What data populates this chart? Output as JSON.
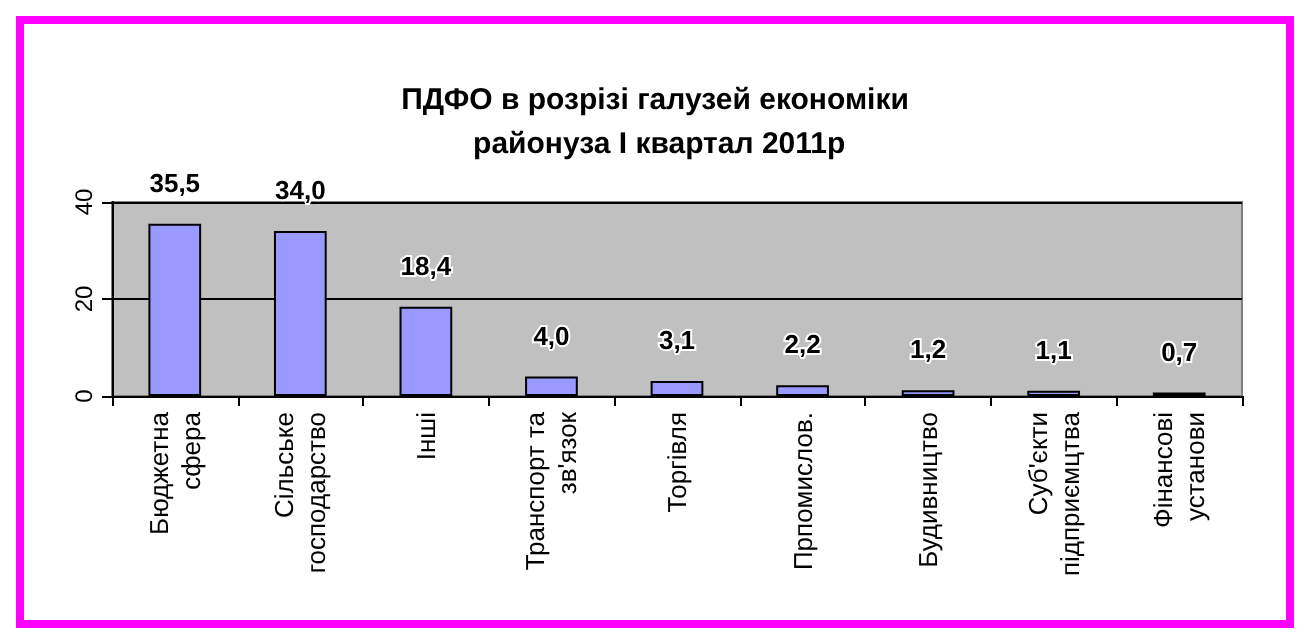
{
  "chart_data": {
    "type": "bar",
    "title": "ПДФО в розрізі галузей економіки районуза І квартал 2011р",
    "categories": [
      "Бюджетна сфера",
      "Сільське господарство",
      "Інші",
      "Транспорт та зв'язок",
      "Торгівля",
      "Прпомислов.",
      "Будивництво",
      "Суб'єкти підприємцтва",
      "Фінансові установи"
    ],
    "values": [
      35.5,
      34.0,
      18.4,
      4.0,
      3.1,
      2.2,
      1.2,
      1.1,
      0.7
    ],
    "value_labels": [
      "35,5",
      "34,0",
      "18,4",
      "4,0",
      "3,1",
      "2,2",
      "1,2",
      "1,1",
      "0,7"
    ],
    "color": "#9999ff",
    "ylim": [
      0,
      40
    ],
    "yticks": [
      0,
      20,
      40
    ],
    "grid": "y"
  }
}
